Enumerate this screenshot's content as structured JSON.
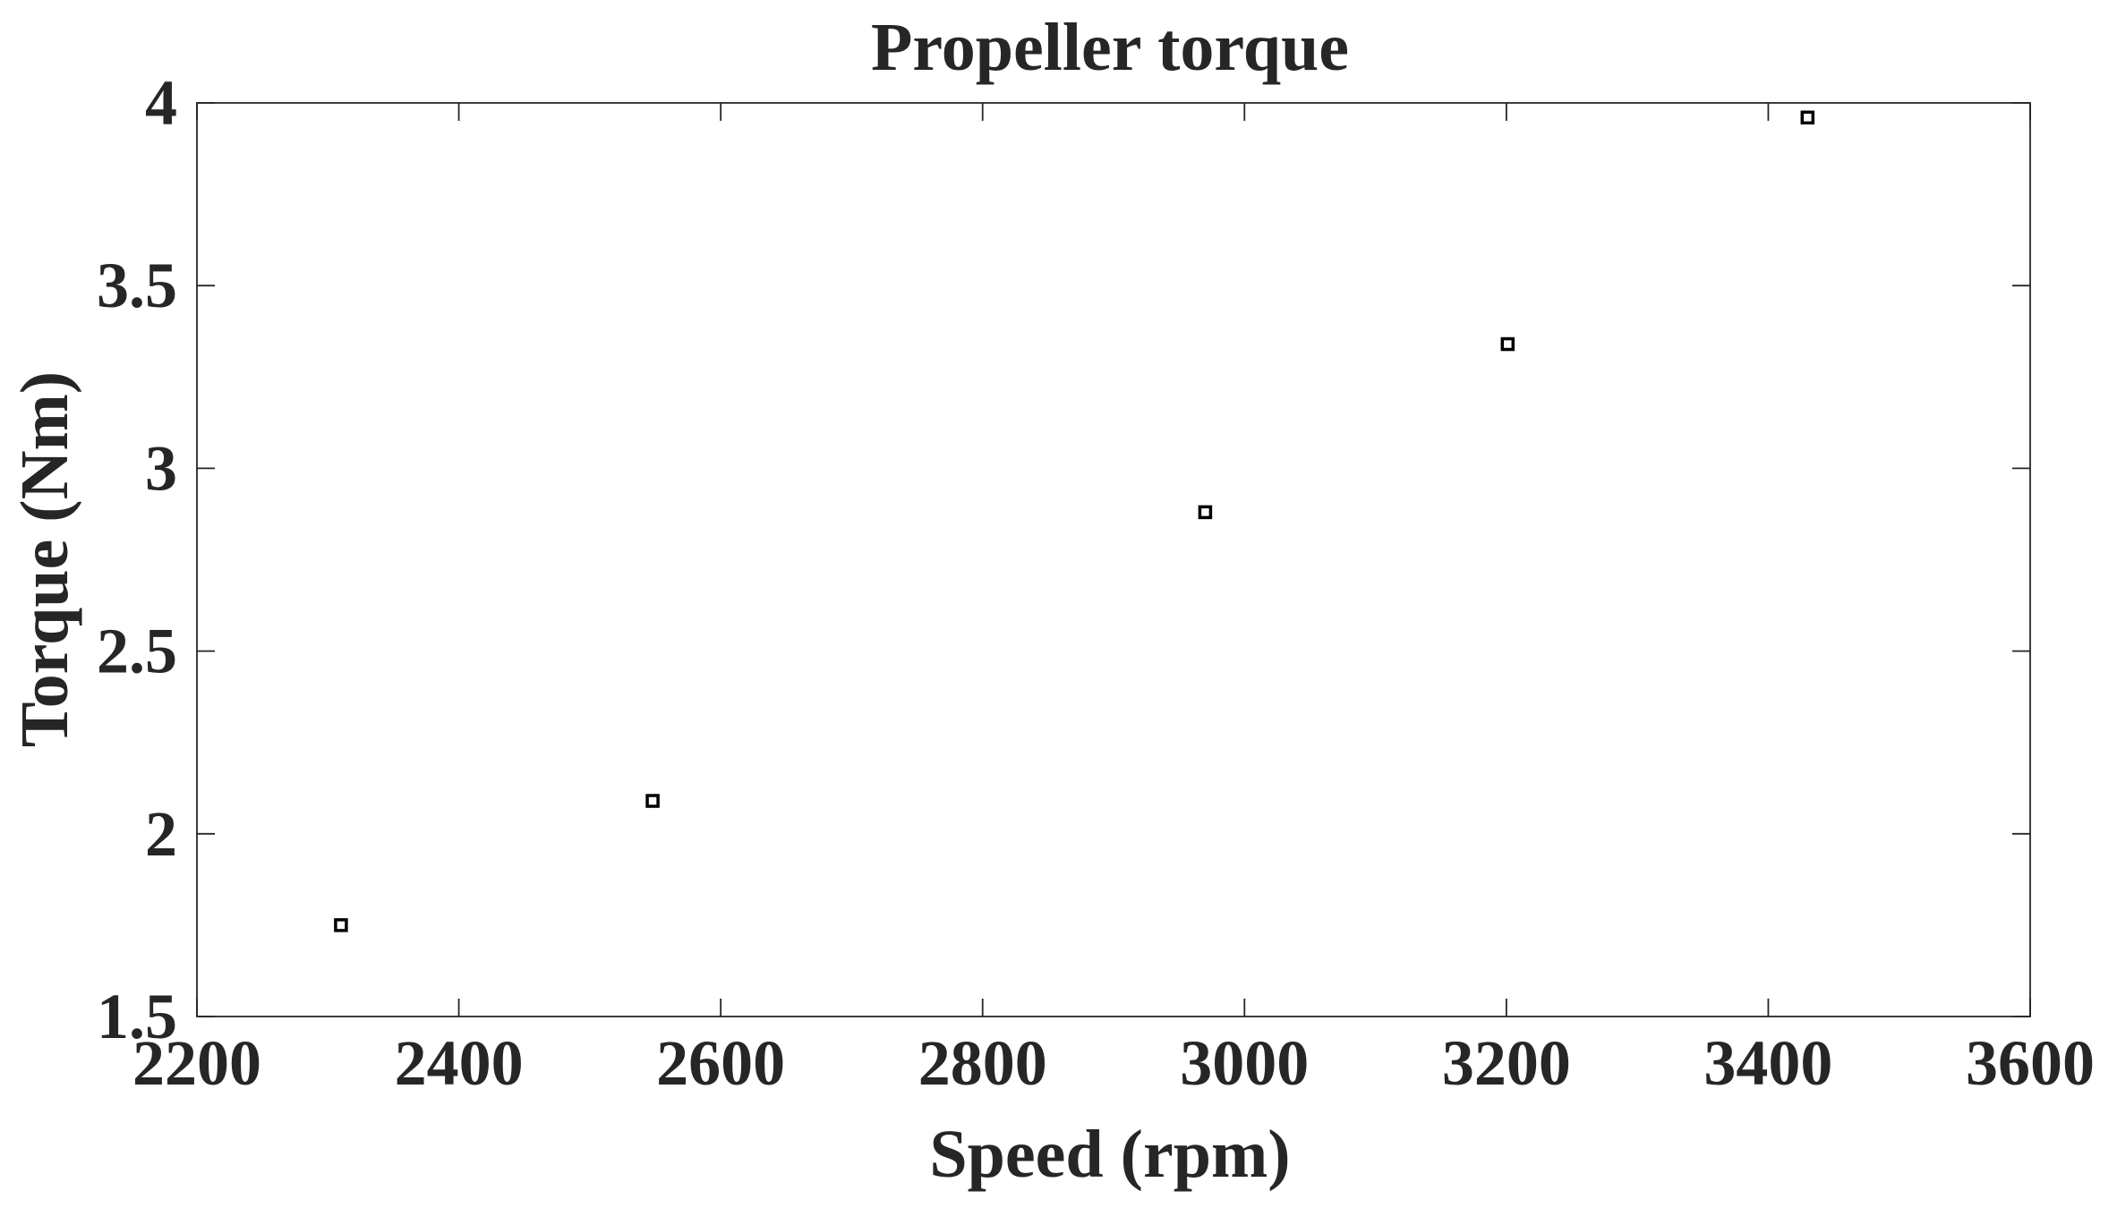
{
  "chart_data": {
    "type": "scatter",
    "title": "Propeller torque",
    "xlabel": "Speed (rpm)",
    "ylabel": "Torque (Nm)",
    "xlim": [
      2200,
      3600
    ],
    "ylim": [
      1.5,
      4
    ],
    "xticks": [
      "2200",
      "2400",
      "2600",
      "2800",
      "3000",
      "3200",
      "3400",
      "3600"
    ],
    "yticks": [
      "1.5",
      "2",
      "2.5",
      "3",
      "3.5",
      "4"
    ],
    "grid": false,
    "legend": "none",
    "marker": "square",
    "colors": {
      "marker": "#000000",
      "axes": "#262626",
      "background": "#ffffff"
    },
    "series": [
      {
        "x": [
          2310,
          2548,
          2970,
          3201,
          3430
        ],
        "y": [
          1.75,
          2.09,
          2.88,
          3.34,
          3.96
        ]
      }
    ]
  }
}
